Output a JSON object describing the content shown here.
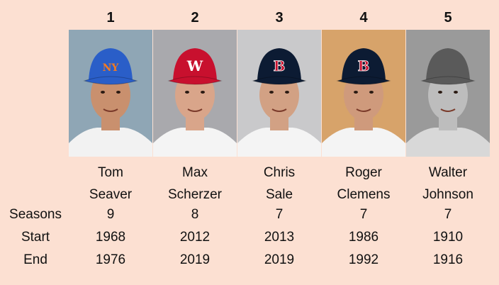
{
  "row_labels": {
    "seasons": "Seasons",
    "start": "Start",
    "end": "End"
  },
  "players": [
    {
      "rank": "1",
      "first": "Tom",
      "last": "Seaver",
      "seasons": "9",
      "start": "1968",
      "end": "1976",
      "cap_logo": "NY",
      "colors": {
        "bg": "#8fa6b5",
        "cap": "#2a5ec8",
        "jersey": "#f2f2f2",
        "skin": "#c9906e"
      }
    },
    {
      "rank": "2",
      "first": "Max",
      "last": "Scherzer",
      "seasons": "8",
      "start": "2012",
      "end": "2019",
      "cap_logo": "W",
      "colors": {
        "bg": "#a9a9ad",
        "cap": "#c8102e",
        "jersey": "#f4f4f4",
        "skin": "#d9a58a"
      }
    },
    {
      "rank": "3",
      "first": "Chris",
      "last": "Sale",
      "seasons": "7",
      "start": "2013",
      "end": "2019",
      "cap_logo": "B",
      "colors": {
        "bg": "#c9c9cb",
        "cap": "#0c1b33",
        "jersey": "#f4f4f4",
        "skin": "#d2a184"
      }
    },
    {
      "rank": "4",
      "first": "Roger",
      "last": "Clemens",
      "seasons": "7",
      "start": "1986",
      "end": "1992",
      "cap_logo": "B",
      "colors": {
        "bg": "#d7a36a",
        "cap": "#0c1b33",
        "jersey": "#f4f4f4",
        "skin": "#cf9a7c"
      }
    },
    {
      "rank": "5",
      "first": "Walter",
      "last": "Johnson",
      "seasons": "7",
      "start": "1910",
      "end": "1916",
      "cap_logo": "",
      "colors": {
        "bg": "#9a9a9a",
        "cap": "#5a5a5a",
        "jersey": "#d8d8d8",
        "skin": "#bdbdbd"
      }
    }
  ]
}
